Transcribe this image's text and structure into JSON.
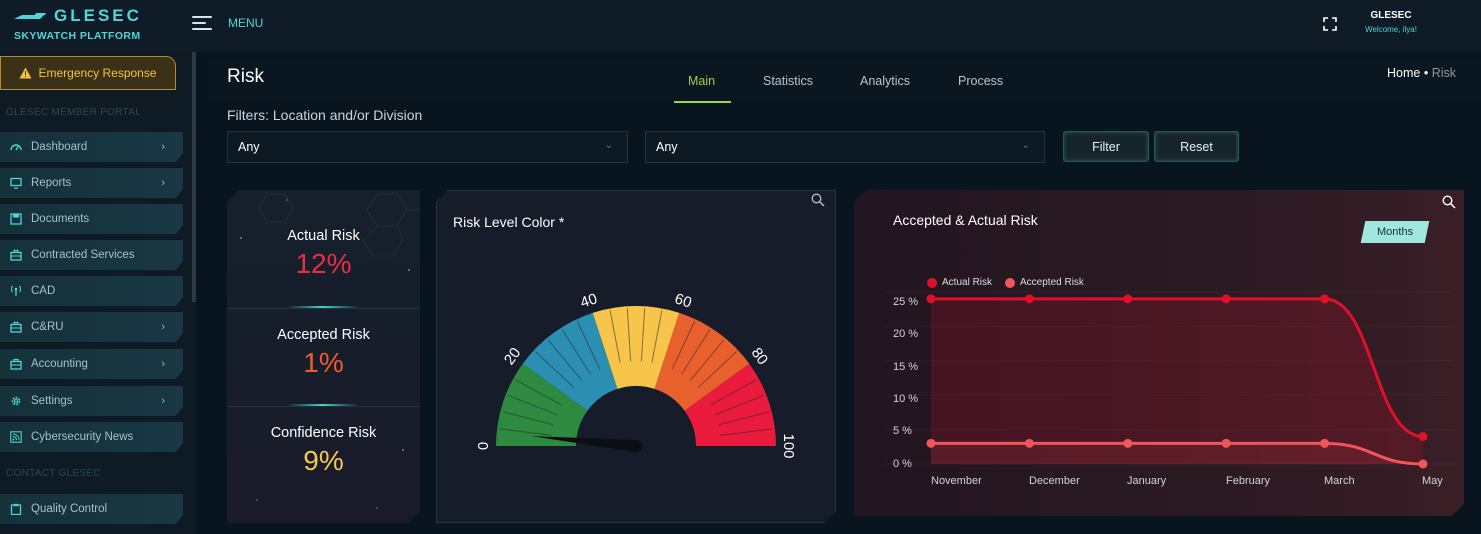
{
  "brand": {
    "name": "GLESEC",
    "subtitle": "SKYWATCH PLATFORM"
  },
  "header": {
    "menu_label": "MENU",
    "user_name": "GLESEC",
    "user_welcome": "Welcome, ilya!"
  },
  "sidebar": {
    "emergency_label": "Emergency Response",
    "section_member": "GLESEC MEMBER PORTAL",
    "section_contact": "CONTACT GLESEC",
    "items": [
      {
        "label": "Dashboard",
        "icon": "gauge-icon",
        "has_children": true
      },
      {
        "label": "Reports",
        "icon": "monitor-icon",
        "has_children": true
      },
      {
        "label": "Documents",
        "icon": "floppy-icon",
        "has_children": false
      },
      {
        "label": "Contracted Services",
        "icon": "briefcase-icon",
        "has_children": false
      },
      {
        "label": "CAD",
        "icon": "antenna-icon",
        "has_children": false
      },
      {
        "label": "C&RU",
        "icon": "briefcase-icon",
        "has_children": true
      },
      {
        "label": "Accounting",
        "icon": "briefcase-icon",
        "has_children": true
      },
      {
        "label": "Settings",
        "icon": "gear-icon",
        "has_children": true
      },
      {
        "label": "Cybersecurity News",
        "icon": "rss-icon",
        "has_children": false
      }
    ],
    "contact_items": [
      {
        "label": "Quality Control",
        "icon": "clipboard-icon"
      }
    ]
  },
  "page": {
    "title": "Risk",
    "tabs": [
      "Main",
      "Statistics",
      "Analytics",
      "Process"
    ],
    "active_tab": "Main",
    "breadcrumb_home": "Home",
    "breadcrumb_separator": "•",
    "breadcrumb_current": "Risk"
  },
  "filters": {
    "title": "Filters: Location and/or Division",
    "location_value": "Any",
    "division_value": "Any",
    "filter_label": "Filter",
    "reset_label": "Reset"
  },
  "kpis": [
    {
      "label": "Actual Risk",
      "value": "12%",
      "color": "#ea2c44"
    },
    {
      "label": "Accepted Risk",
      "value": "1%",
      "color": "#ef5a30"
    },
    {
      "label": "Confidence Risk",
      "value": "9%",
      "color": "#f4c84a"
    }
  ],
  "gauge": {
    "title": "Risk Level Color *",
    "min": 0,
    "max": 100,
    "tick_labels": [
      "0",
      "20",
      "40",
      "60",
      "80",
      "100"
    ],
    "bands": [
      {
        "from": 0,
        "to": 20,
        "color": "#2d8a3e"
      },
      {
        "from": 20,
        "to": 40,
        "color": "#2a8fb0"
      },
      {
        "from": 40,
        "to": 60,
        "color": "#f6c54a"
      },
      {
        "from": 60,
        "to": 80,
        "color": "#e8612c"
      },
      {
        "from": 80,
        "to": 100,
        "color": "#ea1b3c"
      }
    ],
    "needle_value": 3
  },
  "chart_data": {
    "type": "line",
    "title": "Accepted & Actual Risk",
    "period_button": "Months",
    "categories": [
      "November",
      "December",
      "January",
      "February",
      "March",
      "May"
    ],
    "y_ticks": [
      "0 %",
      "5 %",
      "10 %",
      "15 %",
      "20 %",
      "25 %"
    ],
    "ylim": [
      0,
      25
    ],
    "legend_position": "top-left",
    "series": [
      {
        "name": "Actual Risk",
        "color": "#e0102b",
        "values": [
          24,
          24,
          24,
          24,
          24,
          4
        ]
      },
      {
        "name": "Accepted Risk",
        "color": "#f0565a",
        "values": [
          3,
          3,
          3,
          3,
          3,
          0
        ]
      }
    ]
  }
}
